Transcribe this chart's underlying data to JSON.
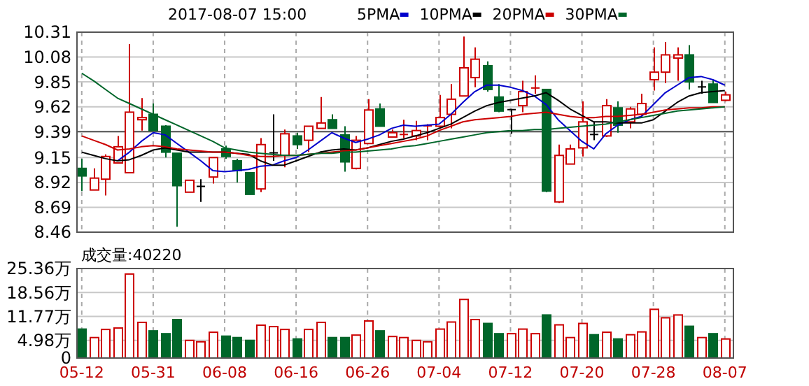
{
  "chart_data": [
    {
      "type": "candlestick",
      "title": "2017-08-07 15:00",
      "categories": [
        null,
        null,
        null,
        null,
        null,
        null,
        null,
        null,
        null,
        null,
        null,
        null,
        null,
        null,
        null,
        null,
        null,
        null,
        null,
        null,
        null,
        null,
        null,
        null,
        null,
        null,
        null,
        null,
        null,
        null,
        null,
        null,
        null,
        null,
        null,
        null,
        null,
        null,
        null,
        null,
        null,
        null,
        null,
        null,
        null,
        null,
        null,
        null,
        null,
        null,
        null,
        null,
        null,
        null,
        null
      ],
      "ohlc": [
        [
          9.05,
          9.14,
          8.84,
          8.98
        ],
        [
          8.85,
          9.05,
          8.85,
          8.96
        ],
        [
          8.95,
          9.18,
          8.8,
          9.16
        ],
        [
          9.1,
          9.35,
          9.1,
          9.25
        ],
        [
          9.01,
          10.2,
          9.01,
          9.57
        ],
        [
          9.5,
          9.7,
          9.4,
          9.52
        ],
        [
          9.55,
          9.65,
          9.4,
          9.4
        ],
        [
          9.44,
          9.45,
          9.15,
          9.2
        ],
        [
          9.19,
          9.19,
          8.51,
          8.89
        ],
        [
          8.83,
          8.94,
          8.83,
          8.94
        ],
        [
          8.89,
          8.95,
          8.74,
          8.89
        ],
        [
          8.97,
          9.15,
          8.91,
          9.15
        ],
        [
          9.23,
          9.26,
          9.14,
          9.16
        ],
        [
          9.12,
          9.14,
          8.92,
          9.03
        ],
        [
          9.01,
          9.01,
          8.81,
          8.81
        ],
        [
          8.86,
          9.33,
          8.83,
          9.27
        ],
        [
          9.2,
          9.55,
          9.12,
          9.2
        ],
        [
          9.17,
          9.41,
          9.06,
          9.37
        ],
        [
          9.35,
          9.38,
          9.23,
          9.27
        ],
        [
          9.31,
          9.44,
          9.2,
          9.44
        ],
        [
          9.42,
          9.71,
          9.42,
          9.47
        ],
        [
          9.5,
          9.55,
          9.42,
          9.42
        ],
        [
          9.36,
          9.44,
          9.02,
          9.11
        ],
        [
          9.05,
          9.35,
          9.04,
          9.31
        ],
        [
          9.28,
          9.69,
          9.28,
          9.59
        ],
        [
          9.6,
          9.65,
          9.44,
          9.44
        ],
        [
          9.34,
          9.41,
          9.34,
          9.38
        ],
        [
          9.36,
          9.5,
          9.33,
          9.37
        ],
        [
          9.35,
          9.49,
          9.31,
          9.4
        ],
        [
          9.44,
          9.46,
          9.31,
          9.45
        ],
        [
          9.44,
          9.73,
          9.42,
          9.52
        ],
        [
          9.55,
          9.83,
          9.42,
          9.69
        ],
        [
          9.72,
          10.27,
          9.72,
          9.98
        ],
        [
          9.89,
          10.17,
          9.8,
          10.06
        ],
        [
          10.0,
          10.04,
          9.76,
          9.78
        ],
        [
          9.71,
          9.83,
          9.57,
          9.58
        ],
        [
          9.6,
          9.6,
          9.37,
          9.6
        ],
        [
          9.63,
          9.86,
          9.57,
          9.76
        ],
        [
          9.79,
          9.91,
          9.74,
          9.8
        ],
        [
          9.78,
          9.78,
          8.83,
          8.84
        ],
        [
          8.74,
          9.27,
          8.73,
          9.17
        ],
        [
          9.09,
          9.27,
          9.09,
          9.23
        ],
        [
          9.24,
          9.67,
          9.16,
          9.48
        ],
        [
          9.37,
          9.48,
          9.31,
          9.37
        ],
        [
          9.35,
          9.69,
          9.34,
          9.63
        ],
        [
          9.61,
          9.67,
          9.38,
          9.45
        ],
        [
          9.48,
          9.62,
          9.42,
          9.6
        ],
        [
          9.55,
          9.74,
          9.52,
          9.65
        ],
        [
          9.87,
          10.17,
          9.77,
          9.94
        ],
        [
          9.94,
          10.22,
          9.84,
          10.1
        ],
        [
          10.07,
          10.17,
          9.86,
          10.1
        ],
        [
          10.1,
          10.19,
          9.78,
          9.85
        ],
        [
          9.81,
          9.86,
          9.74,
          9.81
        ],
        [
          9.83,
          9.87,
          9.66,
          9.66
        ],
        [
          9.68,
          9.76,
          9.67,
          9.73
        ]
      ],
      "colors": [
        "#00662a",
        "#cc0000",
        "#cc0000",
        "#cc0000",
        "#cc0000",
        "#cc0000",
        "#00662a",
        "#00662a",
        "#00662a",
        "#cc0000",
        "#000000",
        "#cc0000",
        "#00662a",
        "#00662a",
        "#00662a",
        "#cc0000",
        "#000000",
        "#cc0000",
        "#00662a",
        "#cc0000",
        "#cc0000",
        "#00662a",
        "#00662a",
        "#cc0000",
        "#cc0000",
        "#00662a",
        "#cc0000",
        "#cc0000",
        "#cc0000",
        "#cc0000",
        "#cc0000",
        "#cc0000",
        "#cc0000",
        "#cc0000",
        "#00662a",
        "#00662a",
        "#000000",
        "#cc0000",
        "#cc0000",
        "#00662a",
        "#cc0000",
        "#cc0000",
        "#cc0000",
        "#000000",
        "#cc0000",
        "#00662a",
        "#cc0000",
        "#cc0000",
        "#cc0000",
        "#cc0000",
        "#cc0000",
        "#00662a",
        "#000000",
        "#00662a",
        "#cc0000"
      ],
      "series": [
        {
          "name": "5PMA",
          "type": "line",
          "color": "#0000cc",
          "values": [
            null,
            null,
            null,
            9.12,
            9.2,
            9.3,
            9.38,
            9.36,
            9.28,
            9.2,
            9.12,
            9.03,
            9.02,
            9.03,
            9.04,
            9.07,
            9.08,
            9.12,
            9.15,
            9.22,
            9.3,
            9.38,
            9.33,
            9.29,
            9.32,
            9.36,
            9.42,
            9.45,
            9.44,
            9.45,
            9.46,
            9.55,
            9.66,
            9.76,
            9.82,
            9.82,
            9.8,
            9.77,
            9.72,
            9.64,
            9.5,
            9.4,
            9.3,
            9.23,
            9.37,
            9.45,
            9.5,
            9.53,
            9.64,
            9.75,
            9.82,
            9.89,
            9.9,
            9.87,
            9.82
          ]
        },
        {
          "name": "10PMA",
          "type": "line",
          "color": "#000000",
          "values": [
            9.2,
            9.17,
            9.14,
            9.12,
            9.13,
            9.17,
            9.22,
            9.24,
            9.22,
            9.2,
            9.2,
            9.2,
            9.2,
            9.19,
            9.18,
            9.12,
            9.08,
            9.08,
            9.12,
            9.16,
            9.2,
            9.22,
            9.23,
            9.22,
            9.24,
            9.27,
            9.3,
            9.32,
            9.35,
            9.38,
            9.42,
            9.46,
            9.52,
            9.58,
            9.63,
            9.66,
            9.68,
            9.7,
            9.72,
            9.75,
            9.68,
            9.6,
            9.54,
            9.48,
            9.48,
            9.47,
            9.47,
            9.47,
            9.5,
            9.58,
            9.66,
            9.72,
            9.75,
            9.76,
            9.77
          ]
        },
        {
          "name": "20PMA",
          "type": "line",
          "color": "#cc0000",
          "values": [
            9.35,
            9.31,
            9.27,
            9.22,
            9.23,
            9.25,
            9.26,
            9.25,
            9.23,
            9.22,
            9.21,
            9.2,
            9.2,
            9.19,
            9.17,
            9.16,
            9.16,
            9.17,
            9.17,
            9.18,
            9.19,
            9.2,
            9.21,
            9.22,
            9.24,
            9.26,
            9.28,
            9.3,
            9.32,
            9.35,
            9.4,
            9.44,
            9.48,
            9.5,
            9.51,
            9.52,
            9.53,
            9.55,
            9.56,
            9.57,
            9.55,
            9.53,
            9.52,
            9.52,
            9.53,
            9.53,
            9.54,
            9.55,
            9.57,
            9.59,
            9.6,
            9.61,
            9.61,
            9.62,
            9.62
          ]
        },
        {
          "name": "30PMA",
          "type": "line",
          "color": "#00662a",
          "values": [
            9.93,
            9.86,
            9.78,
            9.7,
            9.65,
            9.6,
            9.55,
            9.5,
            9.45,
            9.4,
            9.35,
            9.3,
            9.24,
            9.22,
            9.2,
            9.19,
            9.18,
            9.17,
            9.17,
            9.18,
            9.19,
            9.19,
            9.2,
            9.2,
            9.21,
            9.22,
            9.23,
            9.25,
            9.26,
            9.28,
            9.3,
            9.32,
            9.34,
            9.36,
            9.38,
            9.39,
            9.4,
            9.4,
            9.41,
            9.41,
            9.42,
            9.43,
            9.44,
            9.45,
            9.46,
            9.48,
            9.5,
            9.52,
            9.54,
            9.56,
            9.58,
            9.59,
            9.6,
            9.61,
            9.62
          ]
        }
      ],
      "ylim": [
        8.46,
        10.31
      ],
      "yticks": [
        8.46,
        8.69,
        8.92,
        9.15,
        9.39,
        9.62,
        9.85,
        10.08,
        10.31
      ],
      "ref_lines": [
        {
          "axis": "y",
          "value": 9.39,
          "color": "#555555"
        }
      ],
      "grid": true,
      "legend": "top",
      "tick_labels": "y"
    },
    {
      "type": "bar",
      "title": "成交量:40220",
      "categories": [
        "05-12",
        null,
        null,
        null,
        null,
        null,
        "05-31",
        null,
        null,
        null,
        null,
        null,
        "06-08",
        null,
        null,
        null,
        null,
        null,
        "06-16",
        null,
        null,
        null,
        null,
        null,
        "06-26",
        null,
        null,
        null,
        null,
        null,
        "07-04",
        null,
        null,
        null,
        null,
        null,
        "07-12",
        null,
        null,
        null,
        null,
        null,
        "07-20",
        null,
        null,
        null,
        null,
        null,
        "07-28",
        null,
        null,
        null,
        null,
        null,
        "08-07"
      ],
      "values": [
        8.2,
        5.8,
        8.1,
        8.5,
        23.8,
        10.1,
        7.7,
        6.9,
        10.9,
        5.0,
        4.6,
        7.3,
        6.2,
        5.8,
        5.0,
        9.3,
        8.9,
        8.1,
        5.4,
        8.1,
        10.1,
        5.8,
        5.8,
        6.5,
        10.5,
        7.7,
        6.1,
        5.8,
        5.0,
        4.6,
        8.2,
        10.2,
        16.6,
        10.9,
        9.8,
        6.9,
        6.9,
        8.2,
        6.9,
        12.2,
        9.4,
        5.8,
        9.8,
        6.6,
        7.3,
        5.4,
        6.6,
        7.4,
        13.8,
        11.4,
        12.2,
        9.0,
        5.8,
        6.9,
        5.4
      ],
      "colors": [
        "#00662a",
        "#cc0000",
        "#cc0000",
        "#cc0000",
        "#cc0000",
        "#cc0000",
        "#00662a",
        "#00662a",
        "#00662a",
        "#cc0000",
        "#cc0000",
        "#cc0000",
        "#00662a",
        "#00662a",
        "#00662a",
        "#cc0000",
        "#cc0000",
        "#cc0000",
        "#00662a",
        "#cc0000",
        "#cc0000",
        "#00662a",
        "#00662a",
        "#cc0000",
        "#cc0000",
        "#00662a",
        "#cc0000",
        "#cc0000",
        "#cc0000",
        "#cc0000",
        "#cc0000",
        "#cc0000",
        "#cc0000",
        "#cc0000",
        "#00662a",
        "#00662a",
        "#cc0000",
        "#cc0000",
        "#cc0000",
        "#00662a",
        "#cc0000",
        "#cc0000",
        "#cc0000",
        "#00662a",
        "#cc0000",
        "#00662a",
        "#cc0000",
        "#cc0000",
        "#cc0000",
        "#cc0000",
        "#cc0000",
        "#00662a",
        "#cc0000",
        "#00662a",
        "#cc0000"
      ],
      "ylim": [
        0,
        25.36
      ],
      "yticks": [
        0,
        {
          "value": 4.98,
          "label": "4.98万"
        },
        {
          "value": 11.77,
          "label": "11.77万"
        },
        {
          "value": 18.56,
          "label": "18.56万"
        },
        {
          "value": 25.36,
          "label": "25.36万"
        }
      ],
      "grid": true
    }
  ]
}
